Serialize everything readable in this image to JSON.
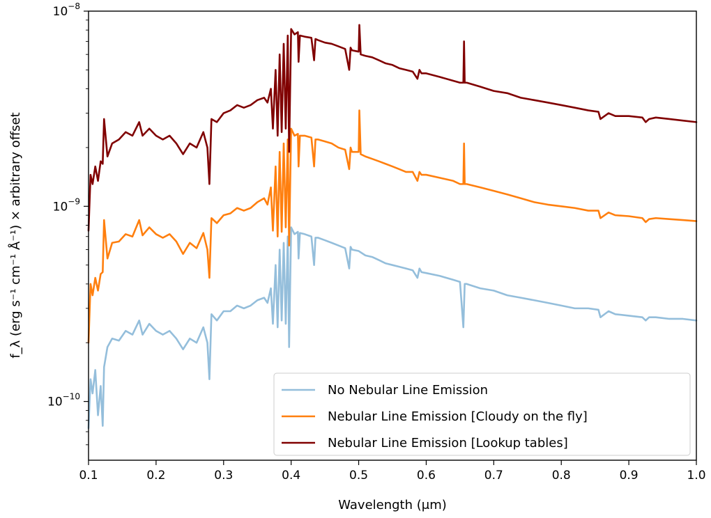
{
  "chart_data": {
    "type": "line",
    "xlabel": "Wavelength (μm)",
    "ylabel": "f_λ (erg s⁻¹ cm⁻¹ Å⁻¹) × arbitrary offset",
    "xlim": [
      0.1,
      1.0
    ],
    "ylim": [
      5e-11,
      1e-08
    ],
    "yscale": "log",
    "grid": false,
    "legend_position": "lower right",
    "x_ticks": [
      {
        "value": 0.1,
        "label": "0.1"
      },
      {
        "value": 0.2,
        "label": "0.2"
      },
      {
        "value": 0.3,
        "label": "0.3"
      },
      {
        "value": 0.4,
        "label": "0.4"
      },
      {
        "value": 0.5,
        "label": "0.5"
      },
      {
        "value": 0.6,
        "label": "0.6"
      },
      {
        "value": 0.7,
        "label": "0.7"
      },
      {
        "value": 0.8,
        "label": "0.8"
      },
      {
        "value": 0.9,
        "label": "0.9"
      },
      {
        "value": 1.0,
        "label": "1.0"
      }
    ],
    "y_ticks": [
      {
        "value": 1e-10,
        "base": "10",
        "exp": "−10"
      },
      {
        "value": 1e-09,
        "base": "10",
        "exp": "−9"
      },
      {
        "value": 1e-08,
        "base": "10",
        "exp": "−8"
      }
    ],
    "series": [
      {
        "name": "No Nebular Line Emission",
        "color": "#94bedb",
        "x": [
          0.1,
          0.103,
          0.106,
          0.11,
          0.114,
          0.118,
          0.121,
          0.123,
          0.128,
          0.135,
          0.145,
          0.155,
          0.165,
          0.175,
          0.18,
          0.19,
          0.2,
          0.21,
          0.22,
          0.23,
          0.24,
          0.25,
          0.26,
          0.27,
          0.276,
          0.279,
          0.282,
          0.29,
          0.3,
          0.31,
          0.32,
          0.33,
          0.34,
          0.35,
          0.36,
          0.365,
          0.37,
          0.373,
          0.377,
          0.38,
          0.383,
          0.386,
          0.389,
          0.392,
          0.395,
          0.397,
          0.4,
          0.405,
          0.41,
          0.411,
          0.413,
          0.42,
          0.43,
          0.434,
          0.436,
          0.44,
          0.45,
          0.46,
          0.47,
          0.48,
          0.486,
          0.488,
          0.49,
          0.5,
          0.51,
          0.52,
          0.53,
          0.54,
          0.55,
          0.56,
          0.57,
          0.58,
          0.587,
          0.59,
          0.593,
          0.6,
          0.62,
          0.64,
          0.65,
          0.655,
          0.657,
          0.66,
          0.68,
          0.7,
          0.72,
          0.74,
          0.76,
          0.78,
          0.8,
          0.82,
          0.84,
          0.855,
          0.858,
          0.87,
          0.88,
          0.9,
          0.92,
          0.925,
          0.93,
          0.94,
          0.96,
          0.98,
          1.0
        ],
        "y": [
          7.3e-11,
          1.3e-10,
          1.1e-10,
          1.45e-10,
          8.5e-11,
          1.2e-10,
          7.5e-11,
          1.5e-10,
          1.9e-10,
          2.1e-10,
          2.05e-10,
          2.3e-10,
          2.2e-10,
          2.6e-10,
          2.2e-10,
          2.5e-10,
          2.3e-10,
          2.2e-10,
          2.3e-10,
          2.1e-10,
          1.85e-10,
          2.1e-10,
          2e-10,
          2.4e-10,
          2e-10,
          1.3e-10,
          2.8e-10,
          2.6e-10,
          2.9e-10,
          2.9e-10,
          3.1e-10,
          3e-10,
          3.1e-10,
          3.3e-10,
          3.4e-10,
          3.2e-10,
          3.8e-10,
          2.5e-10,
          5e-10,
          2.4e-10,
          6e-10,
          2.6e-10,
          6.5e-10,
          2.5e-10,
          7e-10,
          1.9e-10,
          7.8e-10,
          7.2e-10,
          7.4e-10,
          5.4e-10,
          7.3e-10,
          7.2e-10,
          7e-10,
          5e-10,
          6.9e-10,
          6.9e-10,
          6.7e-10,
          6.5e-10,
          6.3e-10,
          6.1e-10,
          4.8e-10,
          6.2e-10,
          6e-10,
          5.9e-10,
          5.6e-10,
          5.5e-10,
          5.3e-10,
          5.1e-10,
          5e-10,
          4.9e-10,
          4.8e-10,
          4.7e-10,
          4.3e-10,
          4.8e-10,
          4.6e-10,
          4.55e-10,
          4.4e-10,
          4.2e-10,
          4.1e-10,
          2.4e-10,
          4e-10,
          4e-10,
          3.8e-10,
          3.7e-10,
          3.5e-10,
          3.4e-10,
          3.3e-10,
          3.2e-10,
          3.1e-10,
          3e-10,
          3e-10,
          2.95e-10,
          2.7e-10,
          2.9e-10,
          2.8e-10,
          2.75e-10,
          2.7e-10,
          2.6e-10,
          2.7e-10,
          2.7e-10,
          2.65e-10,
          2.65e-10,
          2.6e-10
        ]
      },
      {
        "name": "Nebular Line Emission [Cloudy on the fly]",
        "color": "#ff7f0e",
        "x": [
          0.1,
          0.103,
          0.106,
          0.11,
          0.114,
          0.118,
          0.121,
          0.123,
          0.128,
          0.135,
          0.145,
          0.155,
          0.165,
          0.175,
          0.18,
          0.19,
          0.2,
          0.21,
          0.22,
          0.23,
          0.24,
          0.25,
          0.26,
          0.27,
          0.276,
          0.279,
          0.282,
          0.29,
          0.3,
          0.31,
          0.32,
          0.33,
          0.34,
          0.35,
          0.36,
          0.365,
          0.37,
          0.373,
          0.377,
          0.38,
          0.383,
          0.386,
          0.389,
          0.392,
          0.395,
          0.397,
          0.4,
          0.405,
          0.41,
          0.411,
          0.413,
          0.42,
          0.43,
          0.434,
          0.436,
          0.44,
          0.45,
          0.46,
          0.47,
          0.48,
          0.486,
          0.488,
          0.49,
          0.5,
          0.501,
          0.503,
          0.51,
          0.52,
          0.53,
          0.54,
          0.55,
          0.56,
          0.57,
          0.58,
          0.587,
          0.59,
          0.593,
          0.6,
          0.62,
          0.64,
          0.65,
          0.655,
          0.656,
          0.657,
          0.66,
          0.68,
          0.7,
          0.72,
          0.74,
          0.76,
          0.78,
          0.8,
          0.82,
          0.84,
          0.855,
          0.858,
          0.87,
          0.88,
          0.9,
          0.92,
          0.925,
          0.93,
          0.94,
          0.96,
          0.98,
          1.0
        ],
        "y": [
          2e-10,
          4e-10,
          3.5e-10,
          4.3e-10,
          3.7e-10,
          4.5e-10,
          4.6e-10,
          8.5e-10,
          5.4e-10,
          6.5e-10,
          6.6e-10,
          7.2e-10,
          7e-10,
          8.5e-10,
          7.1e-10,
          7.8e-10,
          7.2e-10,
          6.9e-10,
          7.2e-10,
          6.6e-10,
          5.7e-10,
          6.5e-10,
          6.1e-10,
          7.3e-10,
          6e-10,
          4.3e-10,
          8.7e-10,
          8.2e-10,
          9e-10,
          9.2e-10,
          9.8e-10,
          9.5e-10,
          9.8e-10,
          1.05e-09,
          1.1e-09,
          1.02e-09,
          1.25e-09,
          7.5e-10,
          1.6e-09,
          7e-10,
          1.9e-09,
          7.4e-10,
          2.1e-09,
          7.8e-10,
          2.2e-09,
          6.3e-10,
          2.5e-09,
          2.3e-09,
          2.35e-09,
          1.6e-09,
          2.3e-09,
          2.3e-09,
          2.25e-09,
          1.6e-09,
          2.2e-09,
          2.2e-09,
          2.15e-09,
          2.1e-09,
          2e-09,
          1.95e-09,
          1.55e-09,
          2e-09,
          1.9e-09,
          1.9e-09,
          3.1e-09,
          1.85e-09,
          1.8e-09,
          1.75e-09,
          1.7e-09,
          1.65e-09,
          1.6e-09,
          1.55e-09,
          1.5e-09,
          1.5e-09,
          1.35e-09,
          1.5e-09,
          1.45e-09,
          1.45e-09,
          1.4e-09,
          1.35e-09,
          1.3e-09,
          1.3e-09,
          2.1e-09,
          1.3e-09,
          1.3e-09,
          1.25e-09,
          1.2e-09,
          1.15e-09,
          1.1e-09,
          1.05e-09,
          1.02e-09,
          1e-09,
          9.8e-10,
          9.5e-10,
          9.5e-10,
          8.7e-10,
          9.3e-10,
          9e-10,
          8.9e-10,
          8.7e-10,
          8.3e-10,
          8.6e-10,
          8.7e-10,
          8.6e-10,
          8.5e-10,
          8.4e-10
        ]
      },
      {
        "name": "Nebular Line Emission [Lookup tables]",
        "color": "#800000",
        "x": [
          0.1,
          0.103,
          0.106,
          0.11,
          0.114,
          0.118,
          0.121,
          0.123,
          0.128,
          0.135,
          0.145,
          0.155,
          0.165,
          0.175,
          0.18,
          0.19,
          0.2,
          0.21,
          0.22,
          0.23,
          0.24,
          0.25,
          0.26,
          0.27,
          0.276,
          0.279,
          0.282,
          0.29,
          0.3,
          0.31,
          0.32,
          0.33,
          0.34,
          0.35,
          0.36,
          0.365,
          0.37,
          0.373,
          0.377,
          0.38,
          0.383,
          0.386,
          0.389,
          0.392,
          0.395,
          0.397,
          0.4,
          0.405,
          0.41,
          0.411,
          0.413,
          0.42,
          0.43,
          0.434,
          0.436,
          0.44,
          0.45,
          0.46,
          0.47,
          0.48,
          0.486,
          0.488,
          0.49,
          0.5,
          0.501,
          0.503,
          0.51,
          0.52,
          0.53,
          0.54,
          0.55,
          0.56,
          0.57,
          0.58,
          0.587,
          0.59,
          0.593,
          0.6,
          0.62,
          0.64,
          0.65,
          0.655,
          0.656,
          0.657,
          0.66,
          0.68,
          0.7,
          0.72,
          0.74,
          0.76,
          0.78,
          0.8,
          0.82,
          0.84,
          0.855,
          0.858,
          0.87,
          0.88,
          0.9,
          0.92,
          0.925,
          0.93,
          0.94,
          0.96,
          0.98,
          1.0
        ],
        "y": [
          7.5e-10,
          1.45e-09,
          1.3e-09,
          1.6e-09,
          1.35e-09,
          1.7e-09,
          1.65e-09,
          2.8e-09,
          1.8e-09,
          2.1e-09,
          2.2e-09,
          2.4e-09,
          2.3e-09,
          2.7e-09,
          2.3e-09,
          2.5e-09,
          2.3e-09,
          2.2e-09,
          2.3e-09,
          2.1e-09,
          1.85e-09,
          2.1e-09,
          2e-09,
          2.4e-09,
          2e-09,
          1.3e-09,
          2.8e-09,
          2.7e-09,
          3e-09,
          3.1e-09,
          3.3e-09,
          3.2e-09,
          3.3e-09,
          3.5e-09,
          3.6e-09,
          3.4e-09,
          4e-09,
          2.5e-09,
          5e-09,
          2.3e-09,
          6e-09,
          2.4e-09,
          6.8e-09,
          2.5e-09,
          7.5e-09,
          1.9e-09,
          8.1e-09,
          7.6e-09,
          7.8e-09,
          5.5e-09,
          7.5e-09,
          7.4e-09,
          7.3e-09,
          5.6e-09,
          7.2e-09,
          7.1e-09,
          6.9e-09,
          6.8e-09,
          6.6e-09,
          6.4e-09,
          5e-09,
          6.5e-09,
          6.3e-09,
          6.2e-09,
          8.5e-09,
          6e-09,
          5.9e-09,
          5.8e-09,
          5.6e-09,
          5.4e-09,
          5.3e-09,
          5.1e-09,
          5e-09,
          4.9e-09,
          4.5e-09,
          5e-09,
          4.8e-09,
          4.8e-09,
          4.6e-09,
          4.4e-09,
          4.3e-09,
          4.3e-09,
          7e-09,
          4.3e-09,
          4.3e-09,
          4.1e-09,
          3.9e-09,
          3.8e-09,
          3.6e-09,
          3.5e-09,
          3.4e-09,
          3.3e-09,
          3.2e-09,
          3.1e-09,
          3.05e-09,
          2.8e-09,
          3e-09,
          2.9e-09,
          2.9e-09,
          2.85e-09,
          2.7e-09,
          2.8e-09,
          2.85e-09,
          2.8e-09,
          2.75e-09,
          2.7e-09
        ]
      }
    ]
  }
}
